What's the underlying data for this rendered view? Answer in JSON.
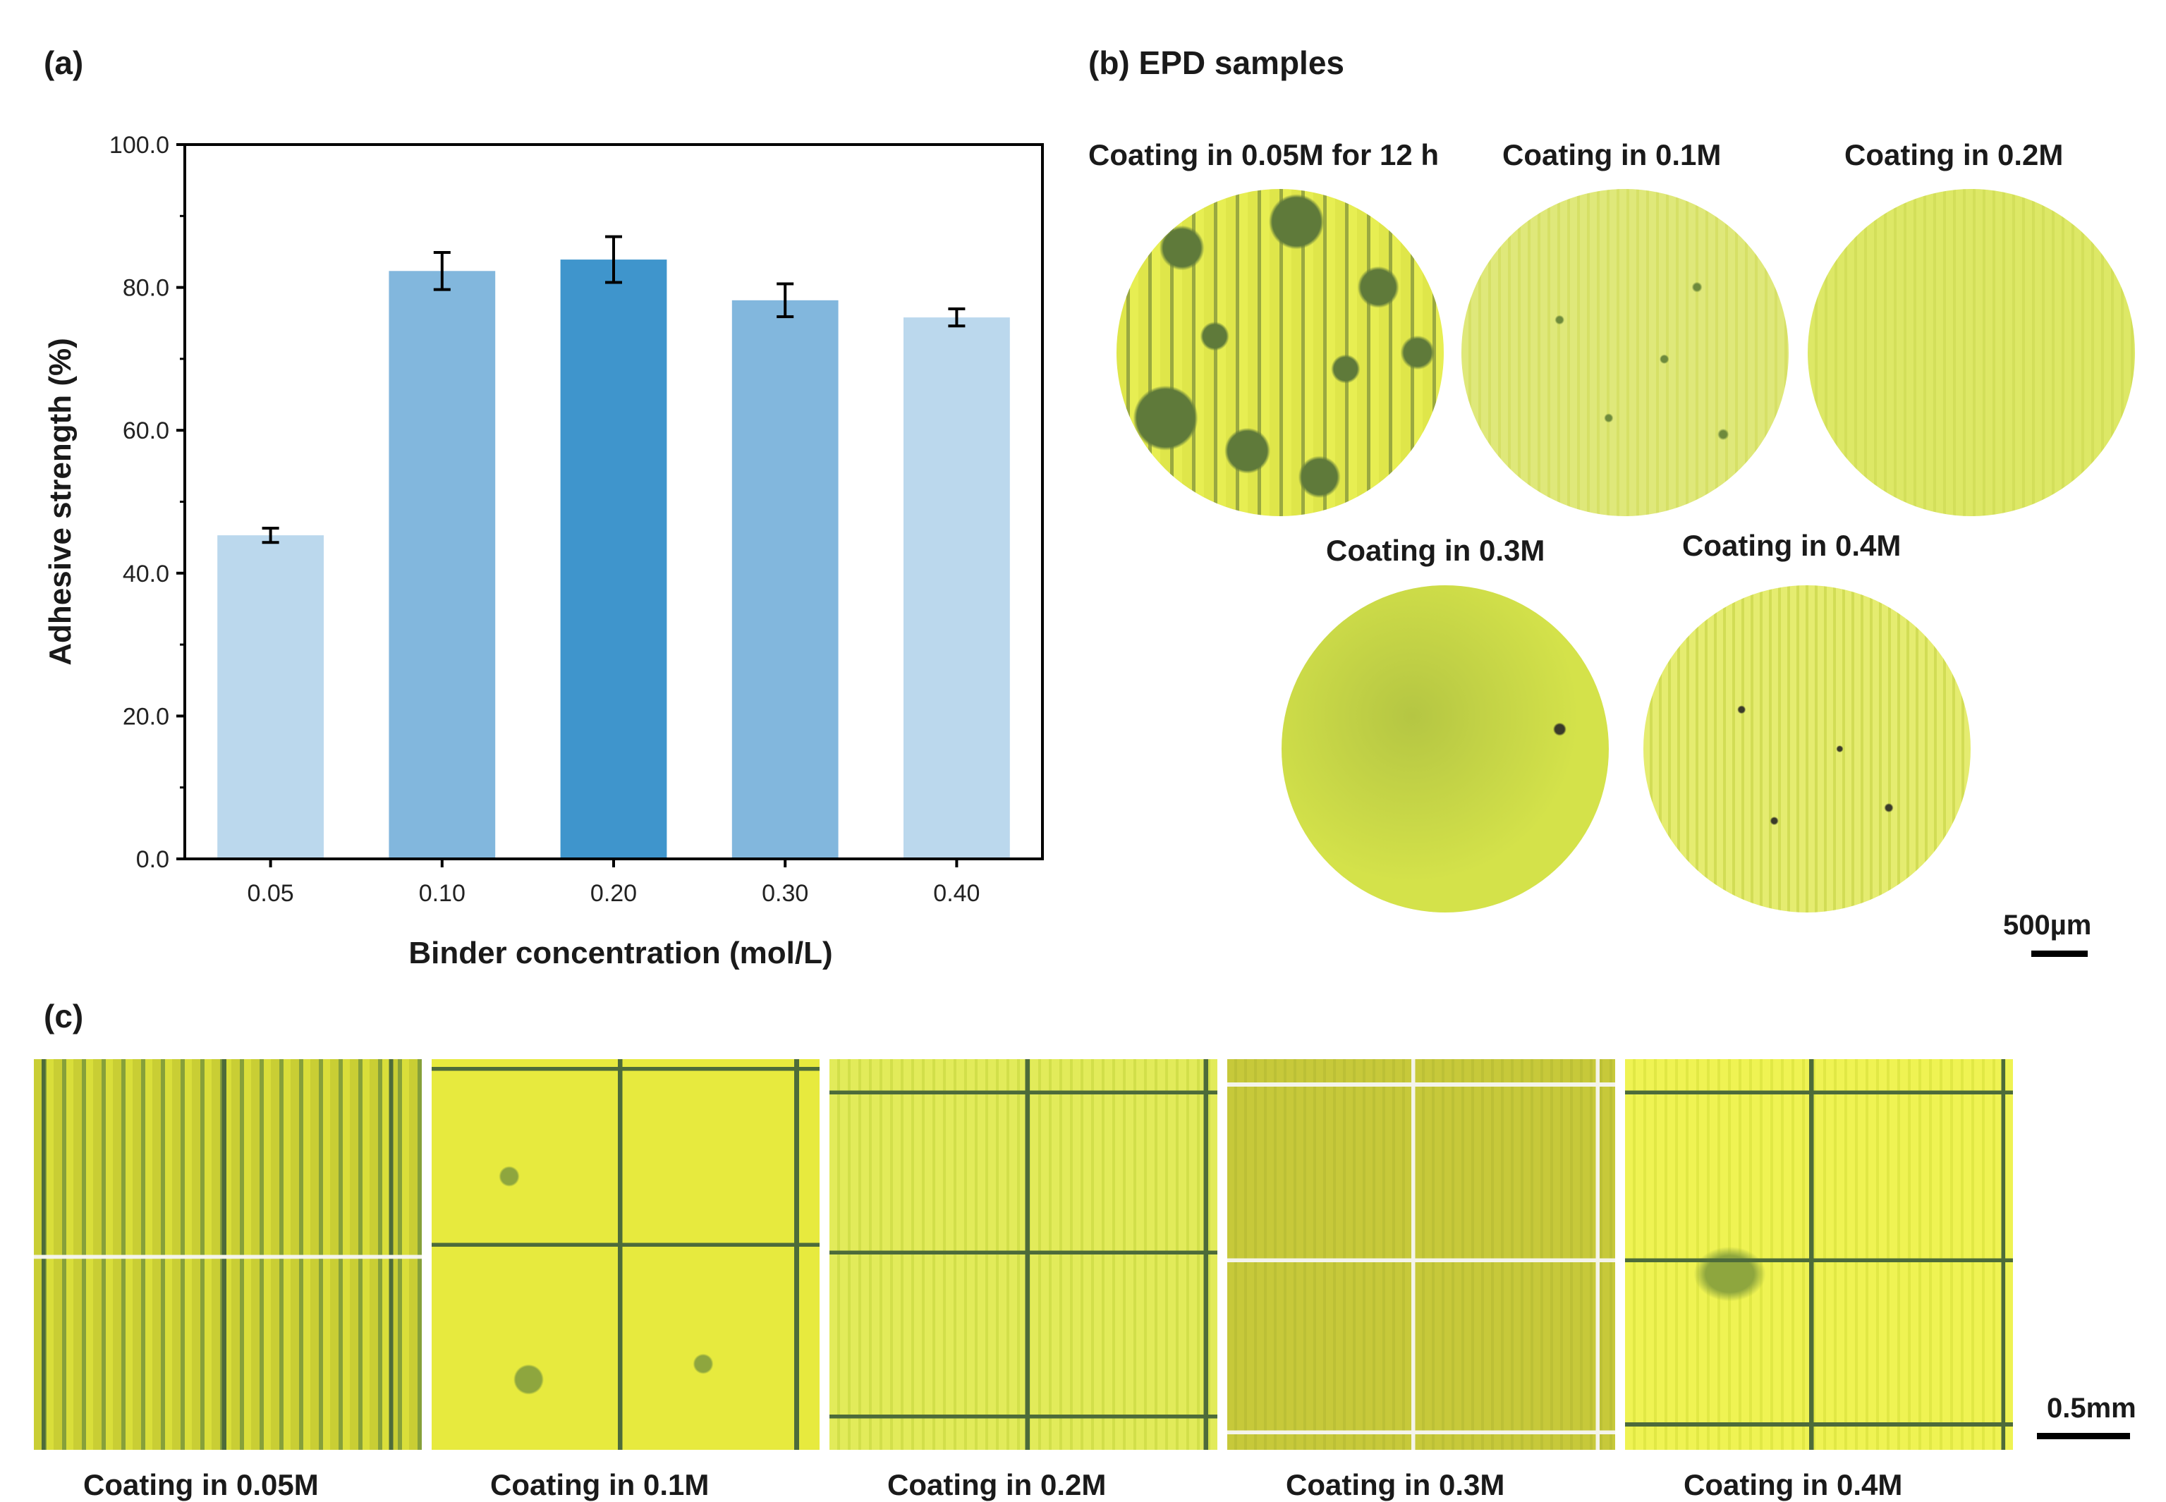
{
  "panel_a": {
    "label": "(a)"
  },
  "chart_data": {
    "type": "bar",
    "title": "",
    "xlabel": "Binder concentration (mol/L)",
    "ylabel": "Adhesive strength (%)",
    "ylim": [
      0,
      100
    ],
    "yticks": [
      "0.0",
      "20.0",
      "40.0",
      "60.0",
      "80.0",
      "100.0"
    ],
    "categories": [
      "0.05",
      "0.10",
      "0.20",
      "0.30",
      "0.40"
    ],
    "values": [
      45.3,
      82.3,
      83.9,
      78.2,
      75.8
    ],
    "errors": [
      1.0,
      2.6,
      3.2,
      2.3,
      1.2
    ],
    "bar_colors": [
      "#bbd8ed",
      "#82b7dd",
      "#3f95cc",
      "#82b7dd",
      "#bbd8ed"
    ],
    "grid": false
  },
  "panel_b": {
    "label": "(b) EPD samples",
    "samples": [
      {
        "caption": "Coating in 0.05M for 12 h"
      },
      {
        "caption": "Coating in 0.1M"
      },
      {
        "caption": "Coating in 0.2M"
      },
      {
        "caption": "Coating in 0.3M"
      },
      {
        "caption": "Coating in 0.4M"
      }
    ],
    "scale_bar": "500µm"
  },
  "panel_c": {
    "label": "(c)",
    "samples": [
      {
        "caption": "Coating in 0.05M"
      },
      {
        "caption": "Coating in 0.1M"
      },
      {
        "caption": "Coating in 0.2M"
      },
      {
        "caption": "Coating in 0.3M"
      },
      {
        "caption": "Coating in 0.4M"
      }
    ],
    "scale_bar": "0.5mm"
  },
  "colors": {
    "coating_yellow": "#e6ec4a",
    "coating_dark": "#5f7a3a",
    "grid_line": "#4d6b3a",
    "scratch_white": "#f4f4ea"
  }
}
